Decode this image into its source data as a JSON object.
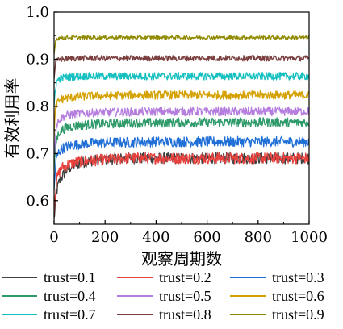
{
  "chart_data": {
    "type": "line",
    "xlabel": "观察周期数",
    "ylabel": "有效利用率",
    "xlim": [
      0,
      1000
    ],
    "ylim": [
      0.55,
      1.0
    ],
    "xticks": [
      0,
      200,
      400,
      600,
      800,
      1000
    ],
    "xtick_labels": [
      "0",
      "200",
      "400",
      "600",
      "800",
      "1000"
    ],
    "yticks": [
      0.6,
      0.7,
      0.8,
      0.9,
      1.0
    ],
    "ytick_labels": [
      "0.6",
      "0.7",
      "0.8",
      "0.9",
      "1.0"
    ],
    "grid": false,
    "legend_position": "bottom",
    "x": [
      0,
      5,
      10,
      20,
      30,
      50,
      75,
      100,
      150,
      200,
      300,
      400,
      500,
      600,
      700,
      800,
      900,
      1000
    ],
    "series": [
      {
        "name": "trust=0.1",
        "color": "#404040",
        "values": [
          0.56,
          0.59,
          0.62,
          0.64,
          0.65,
          0.665,
          0.675,
          0.68,
          0.685,
          0.688,
          0.69,
          0.69,
          0.69,
          0.69,
          0.69,
          0.69,
          0.69,
          0.69
        ]
      },
      {
        "name": "trust=0.2",
        "color": "#e8423e",
        "values": [
          0.58,
          0.62,
          0.645,
          0.66,
          0.67,
          0.675,
          0.68,
          0.683,
          0.685,
          0.687,
          0.69,
          0.69,
          0.69,
          0.69,
          0.69,
          0.69,
          0.69,
          0.69
        ]
      },
      {
        "name": "trust=0.3",
        "color": "#1f6fd6",
        "values": [
          0.62,
          0.67,
          0.69,
          0.705,
          0.71,
          0.715,
          0.718,
          0.72,
          0.722,
          0.723,
          0.724,
          0.725,
          0.725,
          0.725,
          0.725,
          0.725,
          0.725,
          0.725
        ]
      },
      {
        "name": "trust=0.4",
        "color": "#2e9a6a",
        "values": [
          0.66,
          0.71,
          0.73,
          0.745,
          0.75,
          0.755,
          0.758,
          0.76,
          0.762,
          0.763,
          0.765,
          0.765,
          0.766,
          0.766,
          0.766,
          0.766,
          0.766,
          0.766
        ]
      },
      {
        "name": "trust=0.5",
        "color": "#b57ede",
        "values": [
          0.69,
          0.74,
          0.76,
          0.772,
          0.777,
          0.781,
          0.783,
          0.785,
          0.786,
          0.787,
          0.788,
          0.789,
          0.789,
          0.789,
          0.789,
          0.789,
          0.789,
          0.789
        ]
      },
      {
        "name": "trust=0.6",
        "color": "#d4a100",
        "values": [
          0.74,
          0.79,
          0.805,
          0.812,
          0.815,
          0.818,
          0.82,
          0.821,
          0.822,
          0.823,
          0.824,
          0.824,
          0.824,
          0.824,
          0.824,
          0.824,
          0.824,
          0.824
        ]
      },
      {
        "name": "trust=0.7",
        "color": "#17c0c0",
        "values": [
          0.8,
          0.84,
          0.852,
          0.858,
          0.86,
          0.862,
          0.863,
          0.864,
          0.864,
          0.864,
          0.864,
          0.864,
          0.864,
          0.864,
          0.864,
          0.864,
          0.864,
          0.864
        ]
      },
      {
        "name": "trust=0.8",
        "color": "#7b3f3f",
        "values": [
          0.86,
          0.89,
          0.896,
          0.899,
          0.9,
          0.901,
          0.902,
          0.902,
          0.902,
          0.902,
          0.902,
          0.902,
          0.902,
          0.902,
          0.902,
          0.902,
          0.902,
          0.902
        ]
      },
      {
        "name": "trust=0.9",
        "color": "#8f8a00",
        "values": [
          0.91,
          0.938,
          0.943,
          0.945,
          0.946,
          0.946,
          0.946,
          0.946,
          0.946,
          0.946,
          0.946,
          0.946,
          0.946,
          0.946,
          0.946,
          0.946,
          0.946,
          0.946
        ]
      }
    ],
    "noise_amplitude": [
      0.012,
      0.012,
      0.011,
      0.01,
      0.009,
      0.009,
      0.008,
      0.006,
      0.004
    ]
  }
}
